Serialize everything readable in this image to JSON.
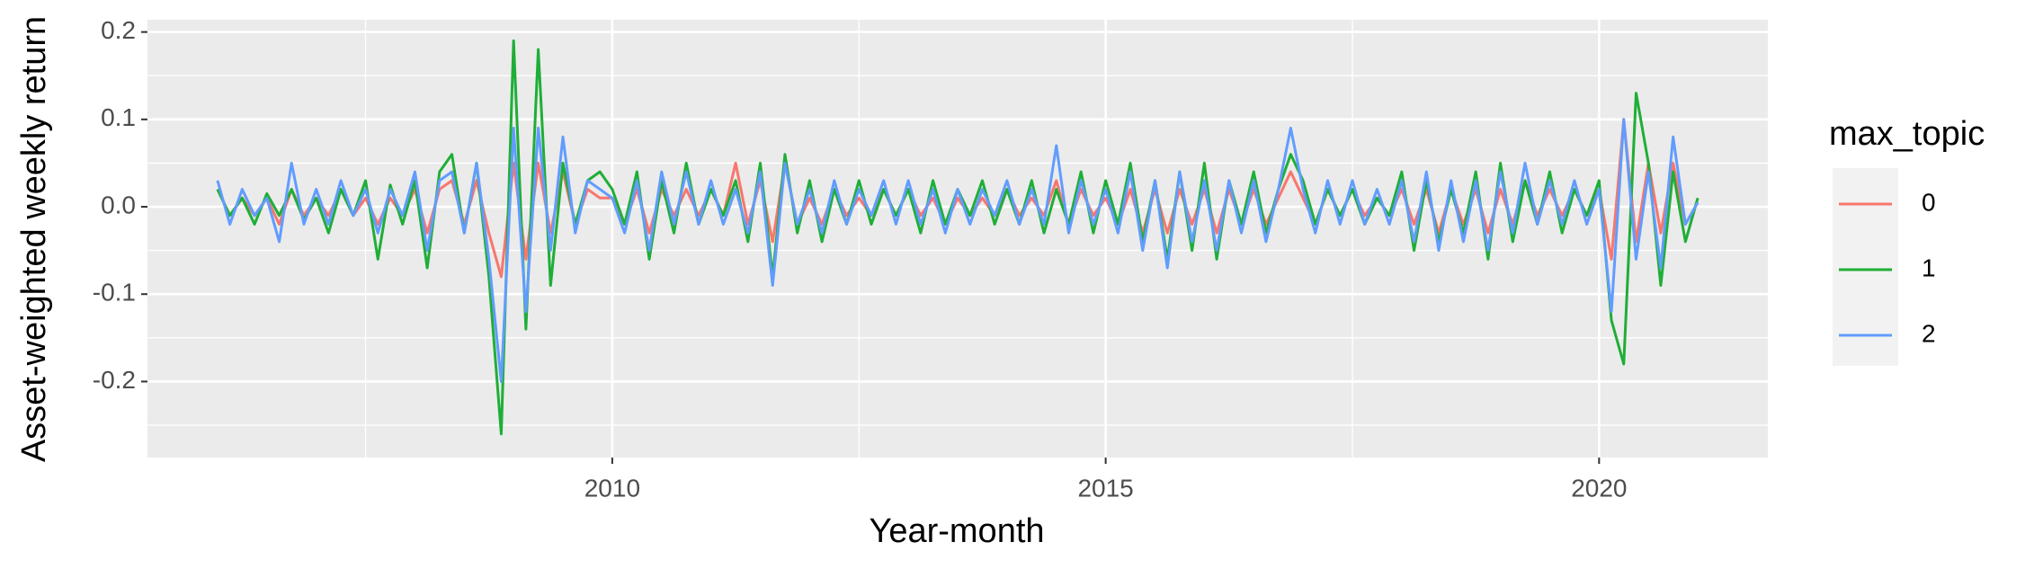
{
  "chart_data": {
    "type": "line",
    "y_label": "Asset-weighted weekly return",
    "x_label": "Year-month",
    "legend_title": "max_topic",
    "x": [
      2006,
      2006.125,
      2006.25,
      2006.375,
      2006.5,
      2006.625,
      2006.75,
      2006.875,
      2007,
      2007.125,
      2007.25,
      2007.375,
      2007.5,
      2007.625,
      2007.75,
      2007.875,
      2008,
      2008.125,
      2008.25,
      2008.375,
      2008.5,
      2008.625,
      2008.75,
      2008.875,
      2009,
      2009.125,
      2009.25,
      2009.375,
      2009.5,
      2009.625,
      2009.75,
      2009.875,
      2010,
      2010.125,
      2010.25,
      2010.375,
      2010.5,
      2010.625,
      2010.75,
      2010.875,
      2011,
      2011.125,
      2011.25,
      2011.375,
      2011.5,
      2011.625,
      2011.75,
      2011.875,
      2012,
      2012.125,
      2012.25,
      2012.375,
      2012.5,
      2012.625,
      2012.75,
      2012.875,
      2013,
      2013.125,
      2013.25,
      2013.375,
      2013.5,
      2013.625,
      2013.75,
      2013.875,
      2014,
      2014.125,
      2014.25,
      2014.375,
      2014.5,
      2014.625,
      2014.75,
      2014.875,
      2015,
      2015.125,
      2015.25,
      2015.375,
      2015.5,
      2015.625,
      2015.75,
      2015.875,
      2016,
      2016.125,
      2016.25,
      2016.375,
      2016.5,
      2016.625,
      2016.75,
      2016.875,
      2017,
      2017.125,
      2017.25,
      2017.375,
      2017.5,
      2017.625,
      2017.75,
      2017.875,
      2018,
      2018.125,
      2018.25,
      2018.375,
      2018.5,
      2018.625,
      2018.75,
      2018.875,
      2019,
      2019.125,
      2019.25,
      2019.375,
      2019.5,
      2019.625,
      2019.75,
      2019.875,
      2020,
      2020.125,
      2020.25,
      2020.375,
      2020.5,
      2020.625,
      2020.75,
      2020.875,
      2021
    ],
    "series": [
      {
        "name": "0",
        "color": "#F8766D",
        "values": [
          0.02,
          -0.01,
          0.01,
          -0.01,
          0.01,
          -0.02,
          0.02,
          -0.01,
          0.01,
          -0.01,
          0.02,
          -0.01,
          0.01,
          -0.02,
          0.01,
          -0.01,
          0.02,
          -0.03,
          0.02,
          0.03,
          -0.02,
          0.03,
          -0.03,
          -0.08,
          0.05,
          -0.06,
          0.05,
          -0.03,
          0.04,
          -0.02,
          0.02,
          0.01,
          0.01,
          -0.02,
          0.02,
          -0.03,
          0.02,
          -0.01,
          0.02,
          -0.01,
          0.02,
          -0.01,
          0.05,
          -0.02,
          0.03,
          -0.04,
          0.05,
          -0.02,
          0.01,
          -0.02,
          0.02,
          -0.01,
          0.01,
          -0.01,
          0.02,
          -0.01,
          0.02,
          -0.01,
          0.01,
          -0.02,
          0.01,
          -0.01,
          0.01,
          -0.01,
          0.02,
          -0.01,
          0.01,
          -0.01,
          0.03,
          -0.02,
          0.02,
          -0.01,
          0.01,
          -0.02,
          0.02,
          -0.03,
          0.02,
          -0.03,
          0.02,
          -0.02,
          0.02,
          -0.03,
          0.02,
          -0.02,
          0.02,
          -0.02,
          0.01,
          0.04,
          0.01,
          -0.02,
          0.02,
          -0.01,
          0.02,
          -0.01,
          0.01,
          -0.01,
          0.02,
          -0.02,
          0.02,
          -0.03,
          0.02,
          -0.02,
          0.02,
          -0.03,
          0.02,
          -0.02,
          0.03,
          -0.01,
          0.02,
          -0.01,
          0.02,
          -0.01,
          0.02,
          -0.06,
          0.1,
          -0.04,
          0.05,
          -0.03,
          0.05,
          -0.02,
          0.005
        ]
      },
      {
        "name": "1",
        "color": "#1FAE37",
        "values": [
          0.02,
          -0.01,
          0.01,
          -0.02,
          0.015,
          -0.01,
          0.02,
          -0.015,
          0.01,
          -0.03,
          0.02,
          -0.01,
          0.03,
          -0.06,
          0.025,
          -0.02,
          0.03,
          -0.07,
          0.04,
          0.06,
          -0.03,
          0.05,
          -0.08,
          -0.26,
          0.19,
          -0.14,
          0.18,
          -0.09,
          0.05,
          -0.02,
          0.03,
          0.04,
          0.02,
          -0.02,
          0.04,
          -0.06,
          0.03,
          -0.03,
          0.05,
          -0.02,
          0.02,
          -0.01,
          0.03,
          -0.04,
          0.05,
          -0.08,
          0.06,
          -0.03,
          0.03,
          -0.04,
          0.02,
          -0.02,
          0.03,
          -0.02,
          0.02,
          -0.01,
          0.02,
          -0.03,
          0.03,
          -0.02,
          0.02,
          -0.01,
          0.03,
          -0.02,
          0.02,
          -0.02,
          0.03,
          -0.03,
          0.02,
          -0.02,
          0.04,
          -0.03,
          0.03,
          -0.02,
          0.05,
          -0.04,
          0.03,
          -0.06,
          0.04,
          -0.05,
          0.05,
          -0.06,
          0.03,
          -0.02,
          0.04,
          -0.03,
          0.02,
          0.06,
          0.03,
          -0.02,
          0.02,
          -0.01,
          0.02,
          -0.02,
          0.01,
          -0.01,
          0.04,
          -0.05,
          0.03,
          -0.04,
          0.02,
          -0.03,
          0.04,
          -0.06,
          0.05,
          -0.04,
          0.03,
          -0.02,
          0.04,
          -0.03,
          0.02,
          -0.01,
          0.03,
          -0.13,
          -0.18,
          0.13,
          0.05,
          -0.09,
          0.04,
          -0.04,
          0.01
        ]
      },
      {
        "name": "2",
        "color": "#619CFF",
        "values": [
          0.03,
          -0.02,
          0.02,
          -0.01,
          0.01,
          -0.04,
          0.05,
          -0.02,
          0.02,
          -0.02,
          0.03,
          -0.01,
          0.02,
          -0.03,
          0.02,
          -0.01,
          0.04,
          -0.05,
          0.03,
          0.04,
          -0.03,
          0.05,
          -0.06,
          -0.2,
          0.09,
          -0.12,
          0.09,
          -0.05,
          0.08,
          -0.03,
          0.03,
          0.02,
          0.01,
          -0.03,
          0.03,
          -0.05,
          0.04,
          -0.02,
          0.04,
          -0.02,
          0.03,
          -0.02,
          0.02,
          -0.03,
          0.04,
          -0.09,
          0.05,
          -0.02,
          0.02,
          -0.03,
          0.03,
          -0.02,
          0.02,
          -0.01,
          0.03,
          -0.02,
          0.03,
          -0.02,
          0.02,
          -0.03,
          0.02,
          -0.02,
          0.02,
          -0.01,
          0.03,
          -0.02,
          0.02,
          -0.02,
          0.07,
          -0.03,
          0.03,
          -0.02,
          0.02,
          -0.03,
          0.04,
          -0.05,
          0.03,
          -0.07,
          0.04,
          -0.04,
          0.03,
          -0.05,
          0.03,
          -0.03,
          0.03,
          -0.04,
          0.02,
          0.09,
          0.02,
          -0.03,
          0.03,
          -0.02,
          0.03,
          -0.02,
          0.02,
          -0.02,
          0.03,
          -0.04,
          0.04,
          -0.05,
          0.03,
          -0.04,
          0.03,
          -0.05,
          0.04,
          -0.03,
          0.05,
          -0.02,
          0.03,
          -0.02,
          0.03,
          -0.02,
          0.02,
          -0.12,
          0.1,
          -0.06,
          0.04,
          -0.07,
          0.08,
          -0.02,
          0.005
        ]
      }
    ],
    "xlim": [
      2005.29,
      2021.71
    ],
    "xticks": [
      2010,
      2015,
      2020
    ],
    "ylim": [
      -0.287,
      0.214
    ],
    "yticks": [
      -0.2,
      -0.1,
      {
        "value": 0,
        "label": "0.0"
      },
      0.1,
      0.2
    ],
    "grid": true
  }
}
